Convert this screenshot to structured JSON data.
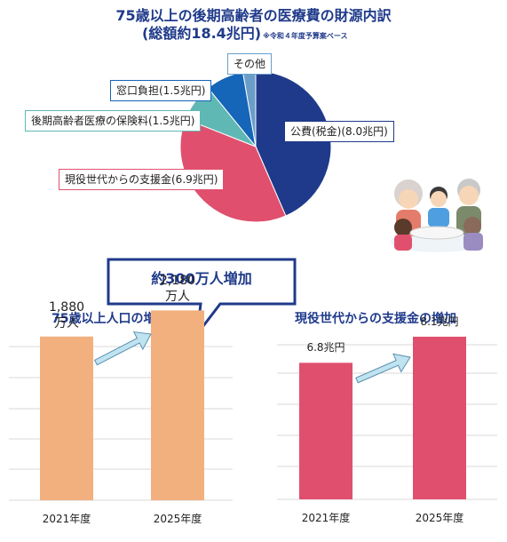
{
  "header": {
    "title": "75歳以上の後期高齢者の医療費の財源内訳",
    "subtitle": "(総額約18.4兆円)",
    "note": "※令和４年度予算案ベース"
  },
  "chart_data": [
    {
      "type": "pie",
      "labels": [
        "公費(税金)(8.0兆円)",
        "現役世代からの支援金(6.9兆円)",
        "後期高齢者医療の保険料(1.5兆円)",
        "窓口負担(1.5兆円)",
        "その他"
      ],
      "values": [
        8.0,
        6.9,
        1.5,
        1.5,
        0.5
      ],
      "colors": [
        "#1f3a8a",
        "#e0506e",
        "#5fb8b4",
        "#1565b8",
        "#6a9ec8"
      ],
      "unit": "兆円"
    },
    {
      "type": "bar",
      "title": "75歳以上人口の増加",
      "categories": [
        "2021年度",
        "2025年度"
      ],
      "values": [
        1880,
        2180
      ],
      "value_labels": [
        [
          "1,880",
          "万人"
        ],
        [
          "2,180",
          "万人"
        ]
      ],
      "color": "#f2b07e",
      "callout": "約300万人増加",
      "ylim": [
        0,
        2500
      ]
    },
    {
      "type": "bar",
      "title": "現役世代からの支援金の増加",
      "categories": [
        "2021年度",
        "2025年度"
      ],
      "values": [
        6.8,
        8.1
      ],
      "value_labels": [
        "6.8兆円",
        "8.1兆円"
      ],
      "color": "#e0506e",
      "ylim": [
        0,
        10
      ]
    }
  ],
  "colors": {
    "title": "#1f3a8a",
    "arrow_fill": "#bfe3ef",
    "arrow_stroke": "#5a8fb0",
    "grid": "#d8d8d8"
  },
  "illustration": {
    "icon": "family-gathering-icon"
  }
}
